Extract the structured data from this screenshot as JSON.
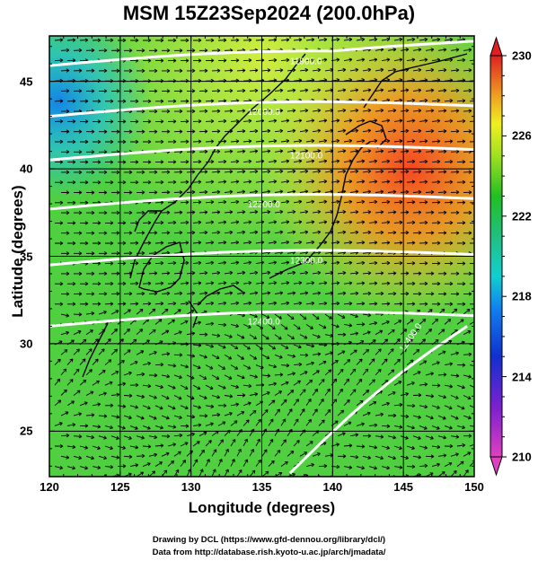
{
  "title": "MSM 15Z23Sep2024 (200.0hPa)",
  "axes": {
    "xlabel": "Longitude (degrees)",
    "ylabel": "Latitude  (degrees)",
    "xlim": [
      120,
      150
    ],
    "ylim": [
      22.4,
      47.6
    ],
    "xticks": [
      "120",
      "125",
      "130",
      "135",
      "140",
      "145",
      "150"
    ],
    "yticks": [
      "25",
      "30",
      "35",
      "40",
      "45"
    ]
  },
  "colorbar": {
    "min": 210,
    "max": 230,
    "ticks": [
      "230",
      "226",
      "222",
      "218",
      "214",
      "210"
    ]
  },
  "contours": [
    {
      "label": "11900.0",
      "lat": 46.2
    },
    {
      "label": "12000.0",
      "lat": 43.3
    },
    {
      "label": "12100.0",
      "lat": 40.8
    },
    {
      "label": "12200.0",
      "lat": 38.0
    },
    {
      "label": "12300.0",
      "lat": 34.8
    },
    {
      "label": "12400.0",
      "lat": 31.3
    },
    {
      "label": "12400.0",
      "lat": 27.5
    }
  ],
  "credits": [
    "Drawing by DCL (https://www.gfd-dennou.org/library/dcl/)",
    "Data from http://database.rish.kyoto-u.ac.jp/arch/jmadata/"
  ]
}
